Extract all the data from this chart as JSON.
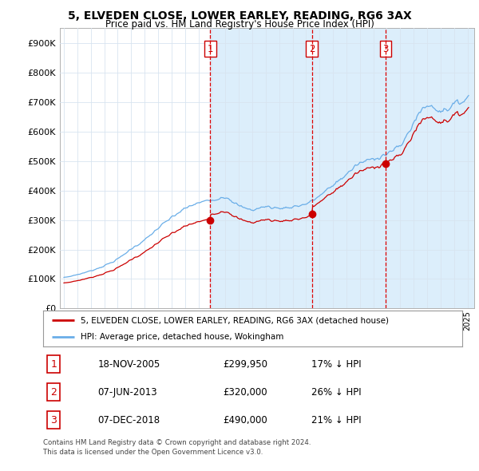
{
  "title": "5, ELVEDEN CLOSE, LOWER EARLEY, READING, RG6 3AX",
  "subtitle": "Price paid vs. HM Land Registry's House Price Index (HPI)",
  "hpi_label": "HPI: Average price, detached house, Wokingham",
  "property_label": "5, ELVEDEN CLOSE, LOWER EARLEY, READING, RG6 3AX (detached house)",
  "hpi_color": "#6aaee8",
  "price_color": "#cc0000",
  "marker_color": "#cc0000",
  "sale_dates": [
    2005.88,
    2013.43,
    2018.92
  ],
  "sale_prices": [
    299950,
    320000,
    490000
  ],
  "sale_labels": [
    "1",
    "2",
    "3"
  ],
  "table_data": [
    [
      "1",
      "18-NOV-2005",
      "£299,950",
      "17% ↓ HPI"
    ],
    [
      "2",
      "07-JUN-2013",
      "£320,000",
      "26% ↓ HPI"
    ],
    [
      "3",
      "07-DEC-2018",
      "£490,000",
      "21% ↓ HPI"
    ]
  ],
  "footer": "Contains HM Land Registry data © Crown copyright and database right 2024.\nThis data is licensed under the Open Government Licence v3.0.",
  "ylim": [
    0,
    950000
  ],
  "yticks": [
    0,
    100000,
    200000,
    300000,
    400000,
    500000,
    600000,
    700000,
    800000,
    900000
  ],
  "ytick_labels": [
    "£0",
    "£100K",
    "£200K",
    "£300K",
    "£400K",
    "£500K",
    "£600K",
    "£700K",
    "£800K",
    "£900K"
  ],
  "xlim_start": 1994.7,
  "xlim_end": 2025.5,
  "background_color": "#ffffff",
  "grid_color": "#d8e4f0",
  "shade_color": "#dceefb"
}
